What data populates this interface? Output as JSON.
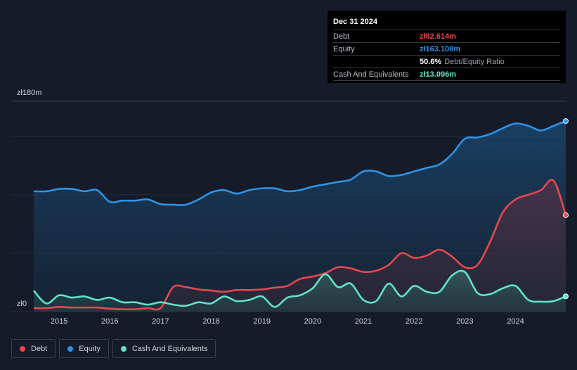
{
  "tooltip": {
    "date": "Dec 31 2024",
    "rows": [
      {
        "label": "Debt",
        "value": "zł82.614m",
        "color": "#e5484d"
      },
      {
        "label": "Equity",
        "value": "zł163.108m",
        "color": "#2e93e6"
      },
      {
        "label": "",
        "value": "50.6%",
        "sub": "Debt/Equity Ratio",
        "color": "#ffffff"
      },
      {
        "label": "Cash And Equivalents",
        "value": "zł13.096m",
        "color": "#5fe3c8"
      }
    ]
  },
  "legend": [
    {
      "label": "Debt",
      "color": "#e5484d"
    },
    {
      "label": "Equity",
      "color": "#2e93e6"
    },
    {
      "label": "Cash And Equivalents",
      "color": "#5fe3c8"
    }
  ],
  "chart_data": {
    "type": "area",
    "ylim": [
      0,
      180
    ],
    "y_tick_labels": [
      {
        "value": 180,
        "label": "zł180m"
      },
      {
        "value": 0,
        "label": "zł0"
      }
    ],
    "x_ticks": [
      2015,
      2016,
      2017,
      2018,
      2019,
      2020,
      2021,
      2022,
      2023,
      2024
    ],
    "xlim": [
      2014.5,
      2025.0
    ],
    "grid": true,
    "series": [
      {
        "name": "Equity",
        "color": "#2e93e6",
        "points": [
          [
            2014.5,
            103
          ],
          [
            2014.75,
            103
          ],
          [
            2015.0,
            105
          ],
          [
            2015.25,
            105
          ],
          [
            2015.5,
            103
          ],
          [
            2015.75,
            104
          ],
          [
            2016.0,
            94
          ],
          [
            2016.25,
            95
          ],
          [
            2016.5,
            95
          ],
          [
            2016.75,
            96
          ],
          [
            2017.0,
            92
          ],
          [
            2017.25,
            91.5
          ],
          [
            2017.5,
            91.5
          ],
          [
            2017.75,
            96
          ],
          [
            2018.0,
            102
          ],
          [
            2018.25,
            104
          ],
          [
            2018.5,
            101
          ],
          [
            2018.75,
            104
          ],
          [
            2019.0,
            105.5
          ],
          [
            2019.25,
            105.5
          ],
          [
            2019.5,
            103
          ],
          [
            2019.75,
            104
          ],
          [
            2020.0,
            107
          ],
          [
            2020.25,
            109
          ],
          [
            2020.5,
            111
          ],
          [
            2020.75,
            113
          ],
          [
            2021.0,
            120
          ],
          [
            2021.25,
            120
          ],
          [
            2021.5,
            116
          ],
          [
            2021.75,
            117
          ],
          [
            2022.0,
            120
          ],
          [
            2022.25,
            123
          ],
          [
            2022.5,
            126
          ],
          [
            2022.75,
            135
          ],
          [
            2023.0,
            148
          ],
          [
            2023.25,
            149
          ],
          [
            2023.5,
            152
          ],
          [
            2023.75,
            157
          ],
          [
            2024.0,
            161
          ],
          [
            2024.25,
            159
          ],
          [
            2024.5,
            155
          ],
          [
            2024.75,
            159
          ],
          [
            2024.99,
            163.1
          ]
        ]
      },
      {
        "name": "Debt",
        "color": "#e5484d",
        "points": [
          [
            2014.5,
            3
          ],
          [
            2014.75,
            3
          ],
          [
            2015.0,
            4
          ],
          [
            2015.25,
            3.5
          ],
          [
            2015.5,
            3.5
          ],
          [
            2015.75,
            3.5
          ],
          [
            2016.0,
            2.5
          ],
          [
            2016.25,
            2
          ],
          [
            2016.5,
            2
          ],
          [
            2016.75,
            3
          ],
          [
            2017.0,
            3
          ],
          [
            2017.25,
            21
          ],
          [
            2017.5,
            21
          ],
          [
            2017.75,
            19
          ],
          [
            2018.0,
            18
          ],
          [
            2018.25,
            17
          ],
          [
            2018.5,
            18.5
          ],
          [
            2018.75,
            18.5
          ],
          [
            2019.0,
            19
          ],
          [
            2019.25,
            20.5
          ],
          [
            2019.5,
            22
          ],
          [
            2019.75,
            28
          ],
          [
            2020.0,
            30
          ],
          [
            2020.25,
            33
          ],
          [
            2020.5,
            38
          ],
          [
            2020.75,
            37
          ],
          [
            2021.0,
            34
          ],
          [
            2021.25,
            35
          ],
          [
            2021.5,
            40
          ],
          [
            2021.75,
            50
          ],
          [
            2022.0,
            46
          ],
          [
            2022.25,
            48
          ],
          [
            2022.5,
            53
          ],
          [
            2022.75,
            47
          ],
          [
            2023.0,
            38
          ],
          [
            2023.25,
            40
          ],
          [
            2023.5,
            60
          ],
          [
            2023.75,
            85
          ],
          [
            2024.0,
            96
          ],
          [
            2024.25,
            100
          ],
          [
            2024.5,
            104
          ],
          [
            2024.75,
            112
          ],
          [
            2024.99,
            82.6
          ]
        ]
      },
      {
        "name": "Cash And Equivalents",
        "color": "#5fe3c8",
        "points": [
          [
            2014.5,
            18
          ],
          [
            2014.75,
            7
          ],
          [
            2015.0,
            14
          ],
          [
            2015.25,
            12
          ],
          [
            2015.5,
            13
          ],
          [
            2015.75,
            10
          ],
          [
            2016.0,
            12
          ],
          [
            2016.25,
            8
          ],
          [
            2016.5,
            8
          ],
          [
            2016.75,
            6
          ],
          [
            2017.0,
            8
          ],
          [
            2017.25,
            6
          ],
          [
            2017.5,
            5
          ],
          [
            2017.75,
            8
          ],
          [
            2018.0,
            7
          ],
          [
            2018.25,
            13
          ],
          [
            2018.5,
            9
          ],
          [
            2018.75,
            10
          ],
          [
            2019.0,
            13
          ],
          [
            2019.25,
            4
          ],
          [
            2019.5,
            12
          ],
          [
            2019.75,
            14
          ],
          [
            2020.0,
            20
          ],
          [
            2020.25,
            32
          ],
          [
            2020.5,
            21
          ],
          [
            2020.75,
            24
          ],
          [
            2021.0,
            10
          ],
          [
            2021.25,
            9
          ],
          [
            2021.5,
            24
          ],
          [
            2021.75,
            13
          ],
          [
            2022.0,
            22
          ],
          [
            2022.25,
            17
          ],
          [
            2022.5,
            17
          ],
          [
            2022.75,
            31
          ],
          [
            2023.0,
            34
          ],
          [
            2023.25,
            16
          ],
          [
            2023.5,
            15
          ],
          [
            2023.75,
            20
          ],
          [
            2024.0,
            22
          ],
          [
            2024.25,
            10
          ],
          [
            2024.5,
            8.5
          ],
          [
            2024.75,
            9
          ],
          [
            2024.99,
            13.1
          ]
        ]
      }
    ]
  }
}
